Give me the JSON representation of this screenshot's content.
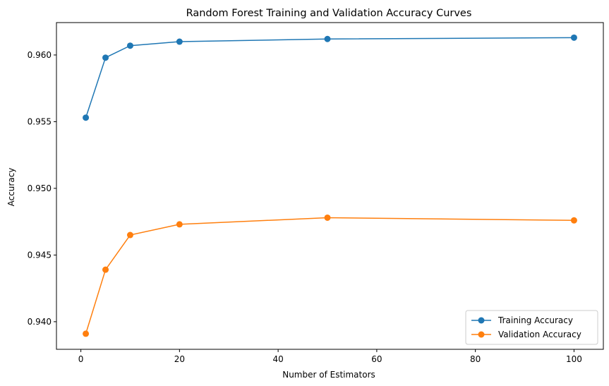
{
  "chart_data": {
    "type": "line",
    "title": "Random Forest Training and Validation Accuracy Curves",
    "xlabel": "Number of Estimators",
    "ylabel": "Accuracy",
    "xlim": [
      -4.95,
      105.95
    ],
    "ylim": [
      0.93793,
      0.96243
    ],
    "xticks": [
      0,
      20,
      40,
      60,
      80,
      100
    ],
    "xtick_labels": [
      "0",
      "20",
      "40",
      "60",
      "80",
      "100"
    ],
    "yticks": [
      0.94,
      0.945,
      0.95,
      0.955,
      0.96
    ],
    "ytick_labels": [
      "0.940",
      "0.945",
      "0.950",
      "0.955",
      "0.960"
    ],
    "x": [
      1,
      5,
      10,
      20,
      50,
      100
    ],
    "series": [
      {
        "name": "Training Accuracy",
        "color": "#1f77b4",
        "marker": "circle",
        "values": [
          0.9553,
          0.9598,
          0.9607,
          0.961,
          0.9612,
          0.9613
        ]
      },
      {
        "name": "Validation Accuracy",
        "color": "#ff7f0e",
        "marker": "circle",
        "values": [
          0.9391,
          0.9439,
          0.9465,
          0.9473,
          0.9478,
          0.9476
        ]
      }
    ],
    "legend_position": "lower-right",
    "grid": false
  }
}
